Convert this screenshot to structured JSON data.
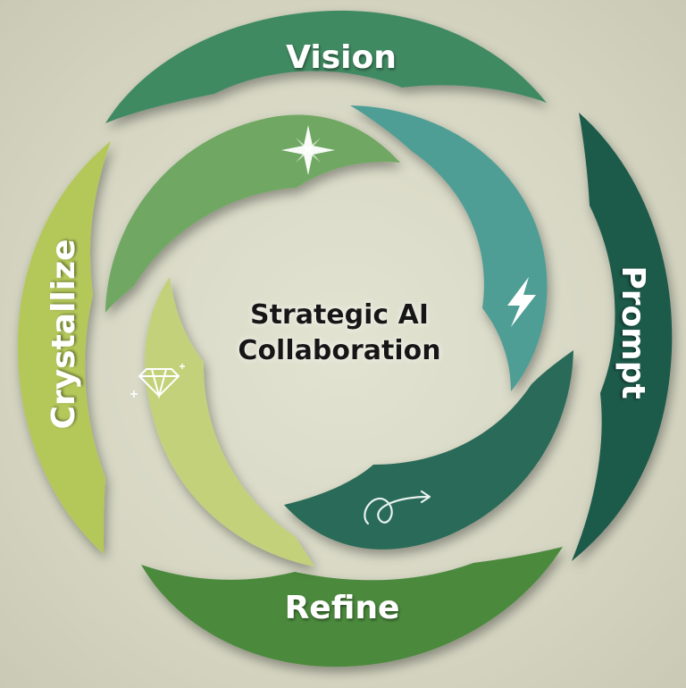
{
  "diagram": {
    "center_title_line1": "Strategic AI",
    "center_title_line2": "Collaboration",
    "stages": [
      {
        "label": "Vision",
        "color": "#3f8a62"
      },
      {
        "label": "Prompt",
        "color": "#1f5a4a"
      },
      {
        "label": "Refine",
        "color": "#4b8a3c"
      },
      {
        "label": "Crystallize",
        "color": "#b4c85a"
      }
    ],
    "inner_arrows": [
      {
        "icon": "sparkle-star-icon",
        "color": "#6fa864"
      },
      {
        "icon": "lightning-icon",
        "color": "#4f9e96"
      },
      {
        "icon": "squiggle-arrow-icon",
        "color": "#2c6a58"
      },
      {
        "icon": "diamond-icon",
        "color": "#c3d27a"
      }
    ]
  }
}
